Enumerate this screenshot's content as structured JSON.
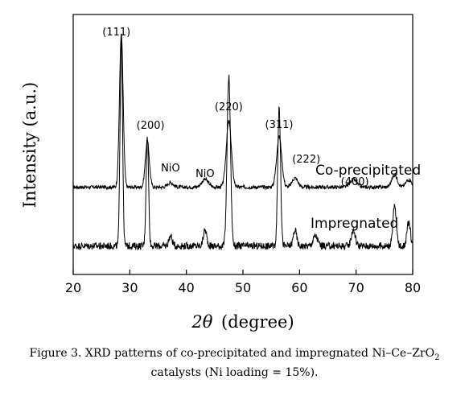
{
  "chart_data": {
    "type": "line",
    "xlabel_symbol": "2θ",
    "xlabel_unit": "(degree)",
    "ylabel": "Intensity (a.u.)",
    "xlim": [
      20,
      80
    ],
    "xticks": [
      20,
      30,
      40,
      50,
      60,
      70,
      80
    ],
    "grid": false,
    "series": [
      {
        "name": "Co-precipitated",
        "baseline": 0.05,
        "noise": 0.012,
        "peaks": [
          {
            "x": 28.5,
            "height": 1.0,
            "width": 0.32
          },
          {
            "x": 33.1,
            "height": 0.3,
            "width": 0.35
          },
          {
            "x": 37.2,
            "height": 0.03,
            "width": 0.5
          },
          {
            "x": 43.3,
            "height": 0.05,
            "width": 0.6
          },
          {
            "x": 47.5,
            "height": 0.43,
            "width": 0.45
          },
          {
            "x": 56.4,
            "height": 0.33,
            "width": 0.45
          },
          {
            "x": 59.2,
            "height": 0.06,
            "width": 0.5
          },
          {
            "x": 69.5,
            "height": 0.05,
            "width": 0.6
          },
          {
            "x": 76.8,
            "height": 0.08,
            "width": 0.5
          },
          {
            "x": 79.3,
            "height": 0.05,
            "width": 0.5
          }
        ]
      },
      {
        "name": "Impregnated",
        "baseline": 0.05,
        "noise": 0.018,
        "peaks": [
          {
            "x": 28.5,
            "height": 1.05,
            "width": 0.22
          },
          {
            "x": 33.1,
            "height": 0.55,
            "width": 0.22
          },
          {
            "x": 37.2,
            "height": 0.05,
            "width": 0.3
          },
          {
            "x": 43.3,
            "height": 0.08,
            "width": 0.3
          },
          {
            "x": 47.5,
            "height": 0.85,
            "width": 0.3
          },
          {
            "x": 56.4,
            "height": 0.7,
            "width": 0.25
          },
          {
            "x": 59.2,
            "height": 0.08,
            "width": 0.3
          },
          {
            "x": 62.8,
            "height": 0.05,
            "width": 0.4
          },
          {
            "x": 69.5,
            "height": 0.08,
            "width": 0.35
          },
          {
            "x": 76.8,
            "height": 0.2,
            "width": 0.3
          },
          {
            "x": 79.3,
            "height": 0.12,
            "width": 0.3
          }
        ]
      }
    ],
    "annotations": [
      {
        "text": "(111)",
        "x": 28.5
      },
      {
        "text": "(200)",
        "x": 33.1
      },
      {
        "text": "NiO",
        "x": 37.2
      },
      {
        "text": "NiO",
        "x": 43.3
      },
      {
        "text": "(220)",
        "x": 47.5
      },
      {
        "text": "(311)",
        "x": 56.4
      },
      {
        "text": "(222)",
        "x": 59.2
      },
      {
        "text": "(400)",
        "x": 69.5
      }
    ]
  },
  "caption": {
    "line1_prefix": "Figure 3.  XRD patterns of co-precipitated and impregnated Ni–Ce–ZrO",
    "line1_subscript": "2",
    "line2": "catalysts (Ni loading = 15%)."
  }
}
